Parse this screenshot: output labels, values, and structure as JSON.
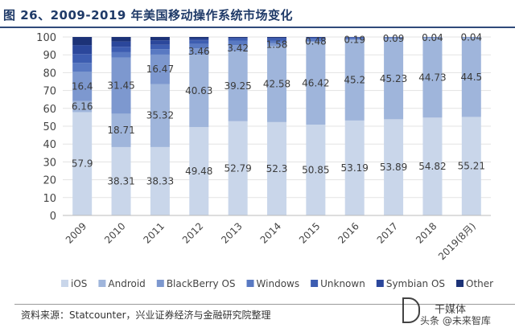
{
  "title": "图 26、2009-2019 年美国移动操作系统市场变化",
  "source": "资料来源：Statcounter，兴业证券经济与金融研究院整理",
  "watermark": {
    "line1": "干媒体",
    "line2": "头条 @未来智库"
  },
  "colors": {
    "iOS": "#c9d6ea",
    "Android": "#9fb5db",
    "BlackBerry OS": "#7d98cf",
    "Windows": "#5979c2",
    "Unknown": "#3d5db1",
    "Symbian OS": "#2b479b",
    "Other": "#1c3277"
  },
  "chart_data": {
    "type": "bar",
    "stacked": true,
    "categories": [
      "2009",
      "2010",
      "2011",
      "2012",
      "2013",
      "2014",
      "2015",
      "2016",
      "2017",
      "2018",
      "2019(8月)"
    ],
    "ylim": [
      0,
      100
    ],
    "yticks": [
      0,
      10,
      20,
      30,
      40,
      50,
      60,
      70,
      80,
      90,
      100
    ],
    "legend_position": "bottom",
    "series": [
      {
        "name": "iOS",
        "values": [
          57.9,
          38.31,
          38.33,
          49.48,
          52.79,
          52.3,
          50.85,
          53.19,
          53.89,
          54.82,
          55.21
        ]
      },
      {
        "name": "Android",
        "values": [
          6.16,
          18.71,
          35.32,
          40.63,
          39.25,
          42.58,
          46.42,
          45.2,
          45.23,
          44.73,
          44.5
        ]
      },
      {
        "name": "BlackBerry OS",
        "values": [
          16.4,
          31.45,
          16.47,
          3.46,
          3.42,
          1.58,
          0.48,
          0.19,
          0.09,
          0.04,
          0.04
        ]
      },
      {
        "name": "Windows",
        "values": [
          5.0,
          3.0,
          3.0,
          2.5,
          2.5,
          1.5,
          1.2,
          0.8,
          0.5,
          0.3,
          0.2
        ]
      },
      {
        "name": "Unknown",
        "values": [
          5.0,
          3.0,
          2.5,
          2.0,
          1.2,
          1.2,
          0.6,
          0.4,
          0.2,
          0.1,
          0.05
        ]
      },
      {
        "name": "Symbian OS",
        "values": [
          5.0,
          3.0,
          2.5,
          1.0,
          0.4,
          0.4,
          0.2,
          0.1,
          0.05,
          0.01,
          0.0
        ]
      },
      {
        "name": "Other",
        "values": [
          4.54,
          2.53,
          1.88,
          0.93,
          0.44,
          0.44,
          0.25,
          0.12,
          0.04,
          0.0,
          0.0
        ]
      }
    ],
    "data_labels": [
      {
        "series": "iOS",
        "values": [
          "57.9",
          "38.31",
          "38.33",
          "49.48",
          "52.79",
          "52.3",
          "50.85",
          "53.19",
          "53.89",
          "54.82",
          "55.21"
        ]
      },
      {
        "series": "Android",
        "values": [
          "6.16",
          "18.71",
          "35.32",
          "40.63",
          "39.25",
          "42.58",
          "46.42",
          "45.2",
          "45.23",
          "44.73",
          "44.5"
        ]
      },
      {
        "series": "BlackBerry OS",
        "values": [
          "16.4",
          "31.45",
          "16.47",
          "3.46",
          "3.42",
          "1.58",
          "0.48",
          "0.19",
          "0.09",
          "0.04",
          "0.04"
        ]
      }
    ]
  }
}
